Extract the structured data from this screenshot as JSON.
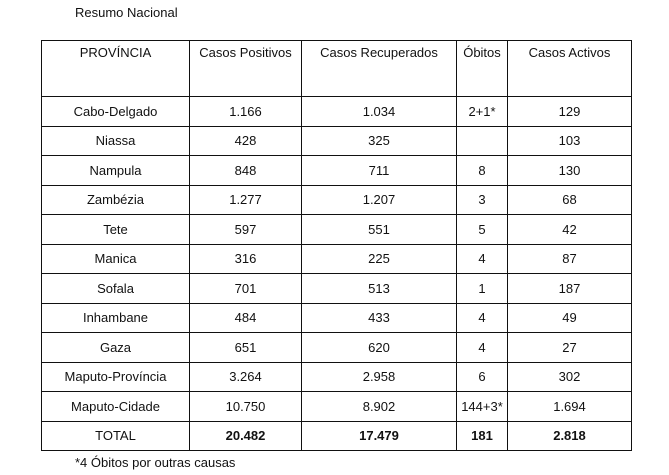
{
  "title": "Resumo Nacional",
  "headers": [
    "PROVÍNCIA",
    "Casos Positivos",
    "Casos Recuperados",
    "Óbitos",
    "Casos Activos"
  ],
  "rows": [
    [
      "Cabo-Delgado",
      "1.166",
      "1.034",
      "2+1*",
      "129"
    ],
    [
      "Niassa",
      "428",
      "325",
      "",
      "103"
    ],
    [
      "Nampula",
      "848",
      "711",
      "8",
      "130"
    ],
    [
      "Zambézia",
      "1.277",
      "1.207",
      "3",
      "68"
    ],
    [
      "Tete",
      "597",
      "551",
      "5",
      "42"
    ],
    [
      "Manica",
      "316",
      "225",
      "4",
      "87"
    ],
    [
      "Sofala",
      "701",
      "513",
      "1",
      "187"
    ],
    [
      "Inhambane",
      "484",
      "433",
      "4",
      "49"
    ],
    [
      "Gaza",
      "651",
      "620",
      "4",
      "27"
    ],
    [
      "Maputo-Província",
      "3.264",
      "2.958",
      "6",
      "302"
    ],
    [
      "Maputo-Cidade",
      "10.750",
      "8.902",
      "144+3*",
      "1.694"
    ]
  ],
  "total": [
    "TOTAL",
    "20.482",
    "17.479",
    "181",
    "2.818"
  ],
  "footnote": "*4 Óbitos por outras causas"
}
